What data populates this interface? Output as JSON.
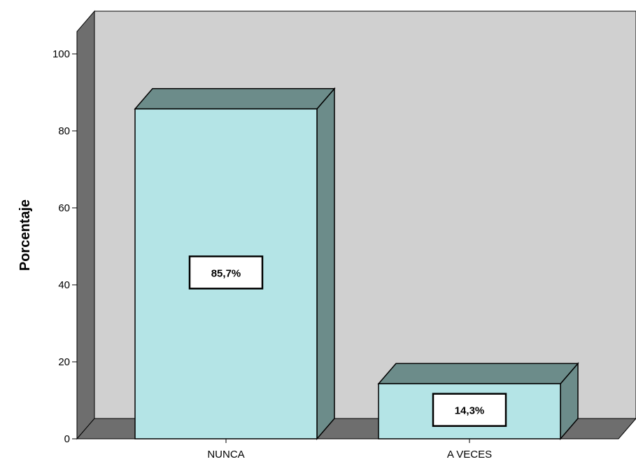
{
  "chart_data": {
    "type": "bar",
    "style": "3d",
    "categories": [
      "NUNCA",
      "A VECES"
    ],
    "values": [
      85.7,
      14.3
    ],
    "data_labels": [
      "85,7%",
      "14,3%"
    ],
    "title": "",
    "xlabel": "",
    "ylabel": "Porcentaje",
    "ylim": [
      0,
      100
    ],
    "yticks": [
      0,
      20,
      40,
      60,
      80,
      100
    ],
    "grid": false,
    "legend": "none",
    "colors": {
      "bar_front": "#b4e4e6",
      "bar_side": "#6c8c8a",
      "bar_top": "#6c8c8a",
      "back_wall": "#d0d0d0",
      "side_wall": "#6e6e6e",
      "floor": "#6e6e6e",
      "label_box": "#ffffff"
    }
  }
}
